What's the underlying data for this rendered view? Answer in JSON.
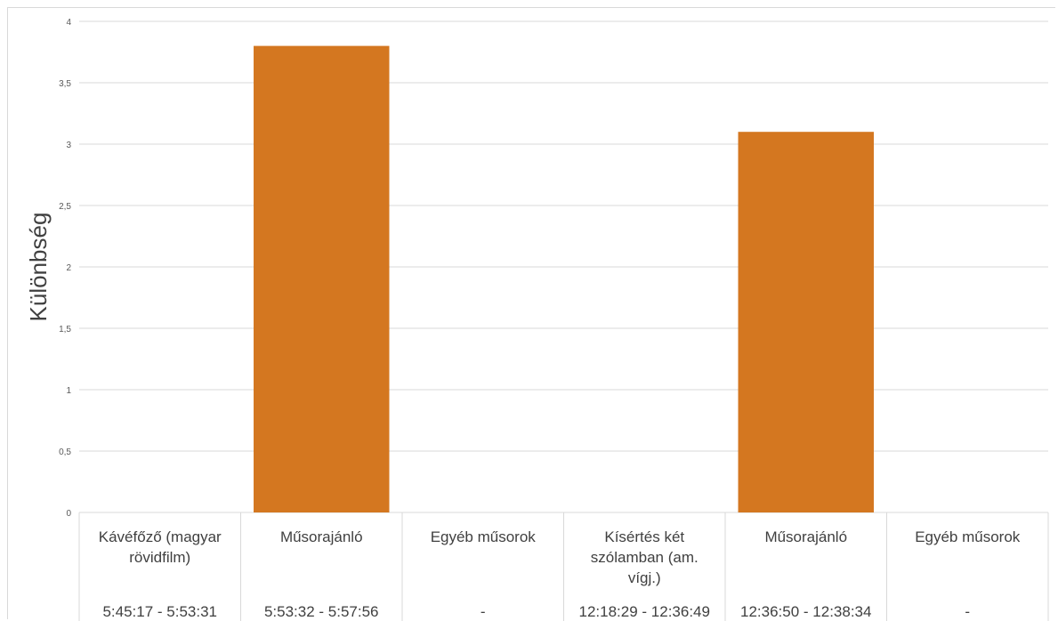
{
  "chart_data": {
    "type": "bar",
    "ylabel": "Különbség",
    "ylim": [
      0,
      4
    ],
    "yticks": [
      "0",
      "0,5",
      "1",
      "1,5",
      "2",
      "2,5",
      "3",
      "3,5",
      "4"
    ],
    "categories": [
      {
        "name": [
          "Kávéfőző (magyar",
          "rövidfilm)"
        ],
        "time": "5:45:17 - 5:53:31"
      },
      {
        "name": [
          "Műsorajánló"
        ],
        "time": "5:53:32 - 5:57:56"
      },
      {
        "name": [
          "Egyéb műsorok"
        ],
        "time": "-"
      },
      {
        "name": [
          "Kísértés két",
          "szólamban (am.",
          "vígj.)"
        ],
        "time": "12:18:29 - 12:36:49"
      },
      {
        "name": [
          "Műsorajánló"
        ],
        "time": "12:36:50 - 12:38:34"
      },
      {
        "name": [
          "Egyéb műsorok"
        ],
        "time": "-"
      }
    ],
    "values": [
      0,
      3.8,
      0,
      0,
      3.1,
      0
    ],
    "bar_color": "#D47720",
    "grid": true
  }
}
